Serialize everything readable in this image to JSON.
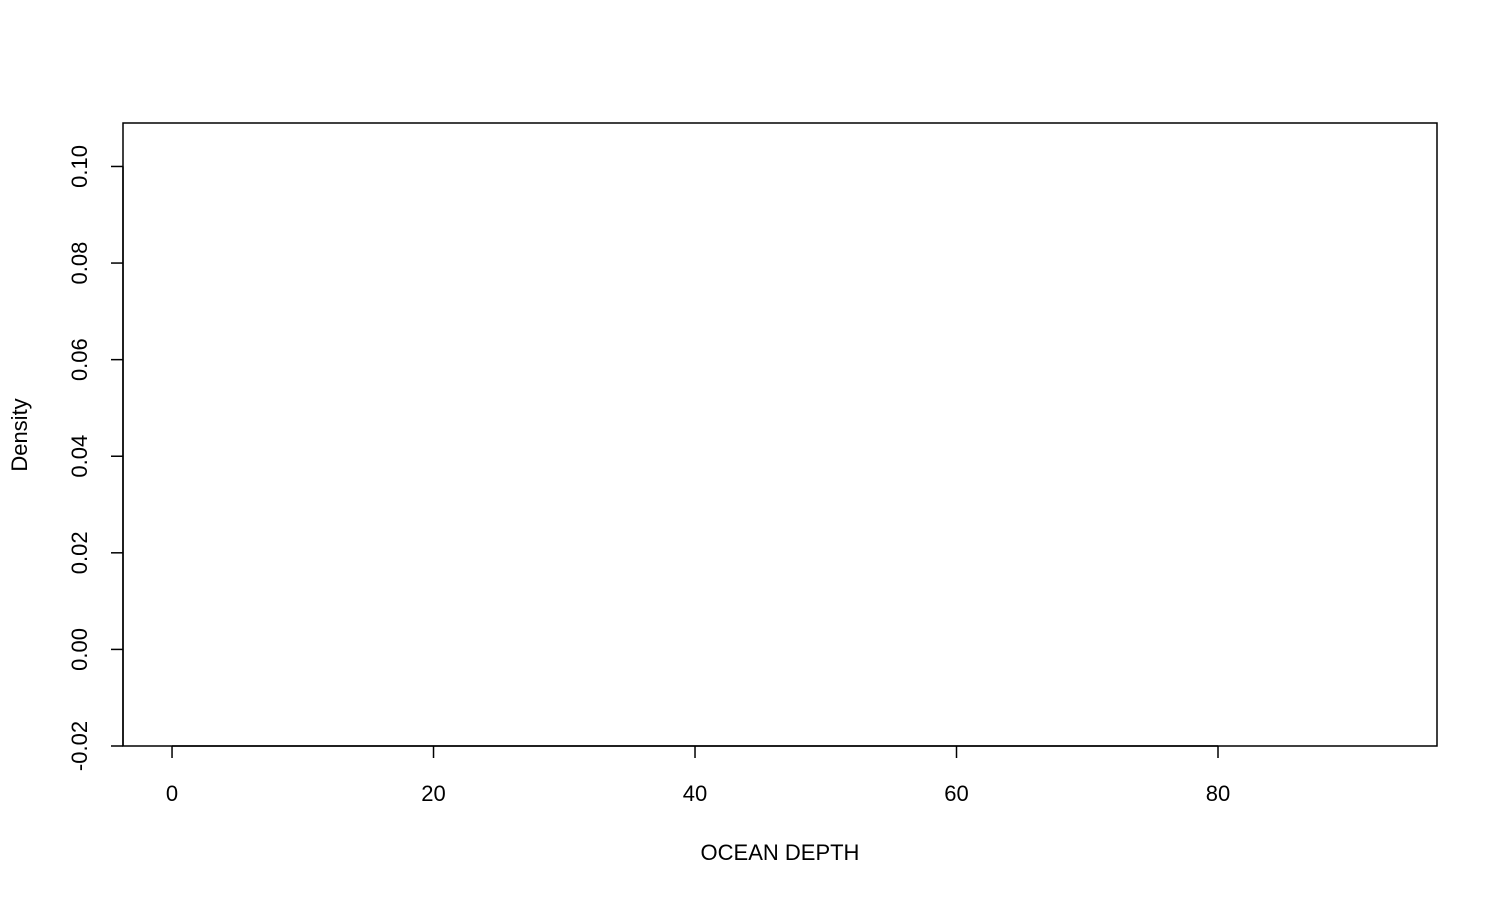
{
  "chart_data": {
    "type": "area",
    "title": "",
    "xlabel": "OCEAN DEPTH",
    "ylabel": "Density",
    "xlim": [
      -3.75,
      96.75
    ],
    "ylim": [
      -0.02,
      0.109
    ],
    "x_ticks": [
      0,
      20,
      40,
      60,
      80
    ],
    "x_tick_labels": [
      "0",
      "20",
      "40",
      "60",
      "80"
    ],
    "y_ticks": [
      -0.02,
      0.0,
      0.02,
      0.04,
      0.06,
      0.08,
      0.1
    ],
    "y_tick_labels": [
      "-0.02",
      "0.00",
      "0.02",
      "0.04",
      "0.06",
      "0.08",
      "0.10"
    ],
    "series": [],
    "grid": false,
    "legend": "none"
  }
}
